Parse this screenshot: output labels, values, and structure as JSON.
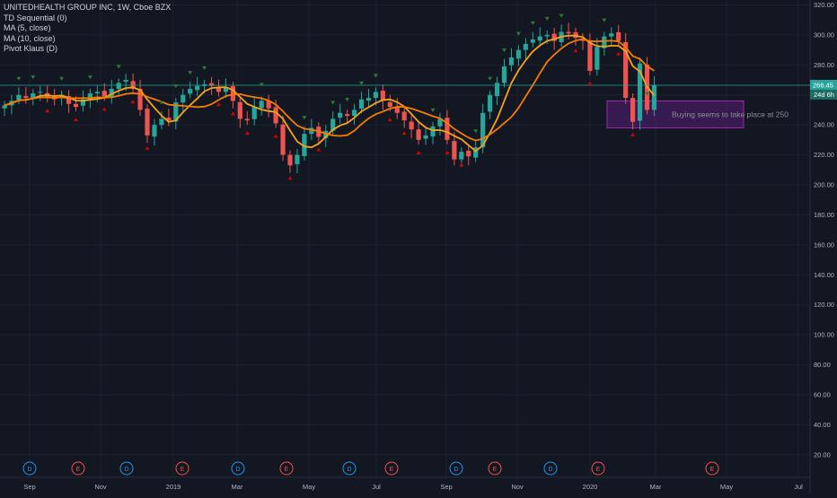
{
  "legend": {
    "symbol": "UNITEDHEALTH GROUP INC, 1W, Cboe BZX",
    "indicators": [
      "TD Sequential (0)",
      "MA (5, close)",
      "MA (10, close)",
      "Pivot Klaus (D)"
    ]
  },
  "last_price_label": "266.45",
  "countdown_label": "24d 6h",
  "annotation_text": "Buying seems to take place at 250",
  "event_markers": [
    "D",
    "E",
    "D",
    "E",
    "D",
    "E",
    "D",
    "E",
    "D",
    "E",
    "D",
    "E",
    "E"
  ],
  "colors": {
    "background": "#131722",
    "up": "#26a69a",
    "down": "#ef5350",
    "ma5": "#f7a21b",
    "ma10": "#f57c00",
    "price_line": "#26a69a",
    "annotation_fill": "#7b1fa2",
    "td_buy": "#d50000",
    "td_sell": "#2e7d32",
    "dividend": "#2196f3",
    "earnings": "#ef5350"
  },
  "chart_data": {
    "type": "candlestick",
    "title": "UNITEDHEALTH GROUP INC, 1W, Cboe BZX",
    "x_tick_labels": [
      "Sep",
      "Nov",
      "2019",
      "Mar",
      "May",
      "Jul",
      "Sep",
      "Nov",
      "2020",
      "Mar",
      "May",
      "Jul"
    ],
    "y_tick_labels": [
      "320.00",
      "300.00",
      "280.00",
      "260.00",
      "240.00",
      "220.00",
      "200.00",
      "180.00",
      "160.00",
      "140.00",
      "120.00",
      "100.00",
      "80.00",
      "60.00",
      "40.00",
      "20.00"
    ],
    "ylim": [
      10,
      322
    ],
    "last_price": 266.45,
    "annotation": {
      "text": "Buying seems to take place at 250",
      "price_range": [
        238,
        256
      ]
    },
    "close": [
      253,
      256,
      260,
      258,
      261,
      262,
      258,
      257,
      260,
      254,
      252,
      257,
      261,
      262,
      259,
      264,
      268,
      270,
      264,
      250,
      233,
      240,
      244,
      243,
      255,
      260,
      264,
      266,
      267,
      266,
      262,
      265,
      256,
      244,
      243,
      252,
      256,
      251,
      241,
      220,
      213,
      220,
      234,
      238,
      232,
      236,
      244,
      248,
      246,
      250,
      257,
      258,
      262,
      256,
      252,
      248,
      243,
      237,
      230,
      233,
      239,
      244,
      230,
      217,
      222,
      219,
      225,
      248,
      260,
      268,
      279,
      285,
      290,
      294,
      297,
      299,
      300,
      296,
      302,
      301,
      298,
      296,
      276,
      292,
      299,
      301,
      296,
      258,
      242,
      281,
      250,
      266.45
    ],
    "series": [
      {
        "name": "MA (5, close)"
      },
      {
        "name": "MA (10, close)"
      }
    ]
  }
}
